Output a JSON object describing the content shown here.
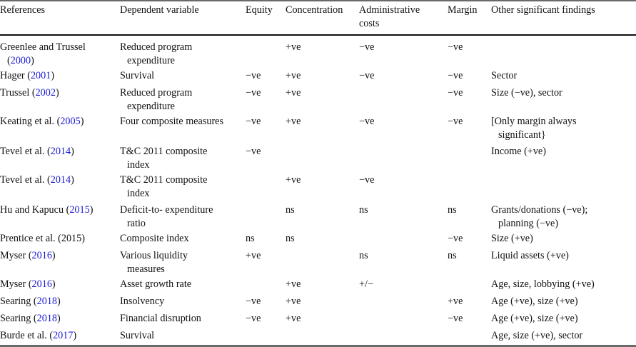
{
  "table": {
    "headers": {
      "references": "References",
      "dependent": "Dependent variable",
      "equity": "Equity",
      "concentration": "Concentration",
      "admin_line1": "Administrative",
      "admin_line2": "costs",
      "margin": "Margin",
      "other": "Other significant findings"
    },
    "rows": [
      {
        "ref_author": "Greenlee and Trussel",
        "ref_year": "2000",
        "ref_open": "(",
        "ref_close": ")",
        "ref_wrap": true,
        "dep1": "Reduced program",
        "dep2": "expenditure",
        "equity": "",
        "concentration": "+ve",
        "admin": "−ve",
        "margin": "−ve",
        "other1": "",
        "other2": ""
      },
      {
        "ref_author": "Hager ",
        "ref_year": "2001",
        "ref_open": "(",
        "ref_close": ")",
        "dep1": "Survival",
        "dep2": "",
        "equity": "−ve",
        "concentration": "+ve",
        "admin": "−ve",
        "margin": "−ve",
        "other1": "Sector",
        "other2": ""
      },
      {
        "ref_author": "Trussel ",
        "ref_year": "2002",
        "ref_open": "(",
        "ref_close": ")",
        "dep1": "Reduced program",
        "dep2": "expenditure",
        "equity": "−ve",
        "concentration": "+ve",
        "admin": "",
        "margin": "−ve",
        "other1": "Size (−ve), sector",
        "other2": ""
      },
      {
        "ref_author": "Keating et al. ",
        "ref_year": "2005",
        "ref_open": "(",
        "ref_close": ")",
        "dep1": "Four composite measures",
        "dep2": "",
        "equity": "−ve",
        "concentration": "+ve",
        "admin": "−ve",
        "margin": "−ve",
        "other1": "[Only margin always",
        "other2": "significant}"
      },
      {
        "ref_author": "Tevel et al. ",
        "ref_year": "2014",
        "ref_open": "(",
        "ref_close": ")",
        "dep1": "T&C 2011 composite",
        "dep2": "index",
        "equity": "−ve",
        "concentration": "",
        "admin": "",
        "margin": "",
        "other1": "Income (+ve)",
        "other2": ""
      },
      {
        "ref_author": "Tevel et al. ",
        "ref_year": "2014",
        "ref_open": "(",
        "ref_close": ")",
        "dep1": "T&C 2011 composite",
        "dep2": "index",
        "equity": "",
        "concentration": "+ve",
        "admin": "−ve",
        "margin": "",
        "other1": "",
        "other2": ""
      },
      {
        "ref_author": "Hu and Kapucu ",
        "ref_year": "2015",
        "ref_open": "(",
        "ref_close": ")",
        "dep1": "Deficit-to- expenditure",
        "dep2": "ratio",
        "equity": "",
        "concentration": "ns",
        "admin": "ns",
        "margin": "ns",
        "other1": "Grants/donations (−ve);",
        "other2": "planning (−ve)"
      },
      {
        "ref_author": "Prentice et al. (2015)",
        "ref_year": "",
        "ref_open": "",
        "ref_close": "",
        "dep1": "Composite index",
        "dep2": "",
        "equity": "ns",
        "concentration": "ns",
        "admin": "",
        "margin": "−ve",
        "other1": "Size (+ve)",
        "other2": ""
      },
      {
        "ref_author": "Myser ",
        "ref_year": "2016",
        "ref_open": "(",
        "ref_close": ")",
        "dep1": "Various liquidity",
        "dep2": "measures",
        "equity": "+ve",
        "concentration": "",
        "admin": "ns",
        "margin": "ns",
        "other1": "Liquid assets (+ve)",
        "other2": ""
      },
      {
        "ref_author": "Myser ",
        "ref_year": "2016",
        "ref_open": "(",
        "ref_close": ")",
        "dep1": "Asset growth rate",
        "dep2": "",
        "equity": "",
        "concentration": "+ve",
        "admin": "+/−",
        "margin": "",
        "other1": "Age, size, lobbying (+ve)",
        "other2": ""
      },
      {
        "ref_author": "Searing ",
        "ref_year": "2018",
        "ref_open": "(",
        "ref_close": ")",
        "dep1": "Insolvency",
        "dep2": "",
        "equity": "−ve",
        "concentration": "+ve",
        "admin": "",
        "margin": "+ve",
        "other1": "Age (+ve), size (+ve)",
        "other2": ""
      },
      {
        "ref_author": "Searing ",
        "ref_year": "2018",
        "ref_open": "(",
        "ref_close": ")",
        "dep1": "Financial disruption",
        "dep2": "",
        "equity": "−ve",
        "concentration": "+ve",
        "admin": "",
        "margin": "−ve",
        "other1": "Age (+ve), size (+ve)",
        "other2": ""
      },
      {
        "ref_author": "Burde et al. ",
        "ref_year": "2017",
        "ref_open": "(",
        "ref_close": ")",
        "dep1": "Survival",
        "dep2": "",
        "equity": "",
        "concentration": "",
        "admin": "",
        "margin": "",
        "other1": "Age, size (+ve), sector",
        "other2": ""
      }
    ]
  }
}
